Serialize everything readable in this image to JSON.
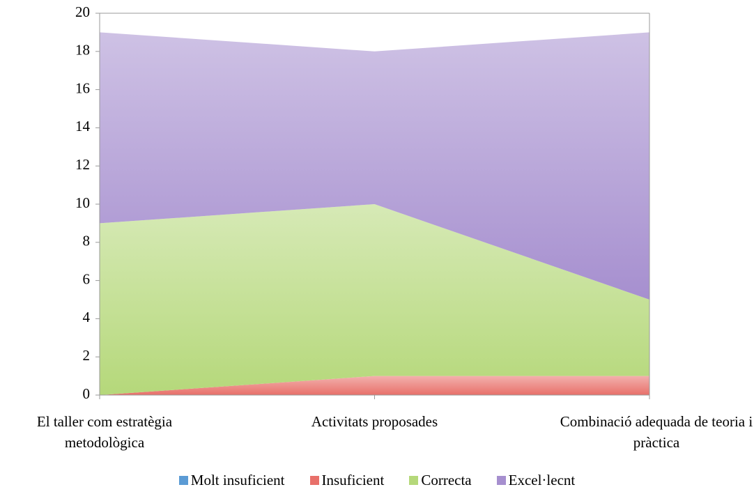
{
  "chart_data": {
    "type": "stacked_area",
    "categories": [
      "El taller com estratègia metodològica",
      "Activitats proposades",
      "Combinació adequada de teoria i pràctica"
    ],
    "series": [
      {
        "name": "Molt insuficient",
        "color": "#5b9bd5",
        "values": [
          0,
          0,
          0
        ]
      },
      {
        "name": "Insuficient",
        "color": "#e8706a",
        "values": [
          0,
          1,
          1
        ]
      },
      {
        "name": "Correcta",
        "color": "#b5d87a",
        "values": [
          9,
          9,
          4
        ]
      },
      {
        "name": "Excel·lecnt",
        "color": "#a68fcf",
        "values": [
          10,
          8,
          14
        ]
      }
    ],
    "ylim": [
      0,
      20
    ],
    "yticks": [
      0,
      2,
      4,
      6,
      8,
      10,
      12,
      14,
      16,
      18,
      20
    ]
  }
}
